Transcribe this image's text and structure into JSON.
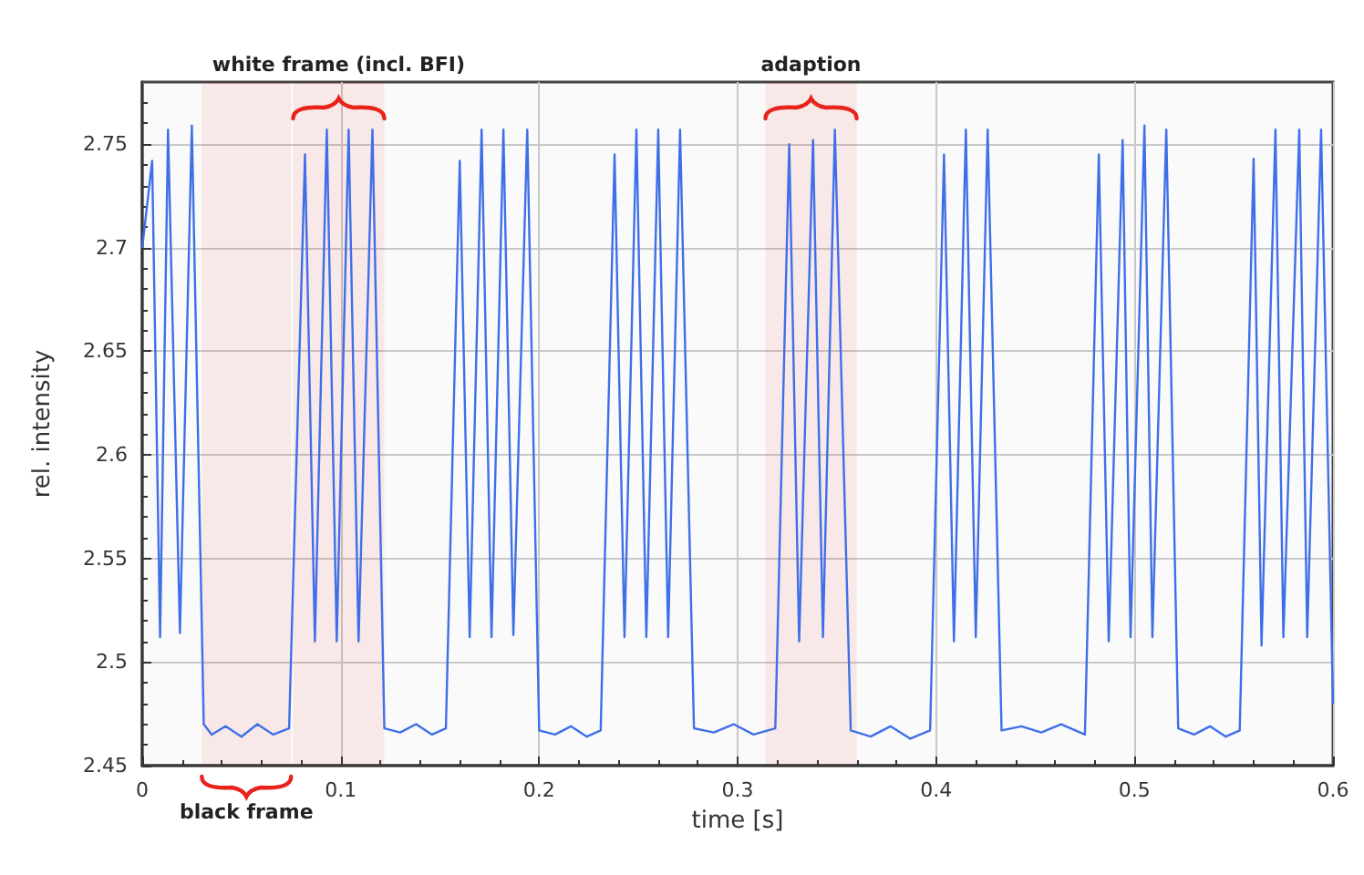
{
  "chart_data": {
    "type": "line",
    "xlabel": "time [s]",
    "ylabel": "rel. intensity",
    "bands": [
      {
        "axis": "x",
        "from": 0.076,
        "to": 0.122,
        "label": "white frame (incl. BFI)",
        "color": "#e8231c"
      },
      {
        "axis": "x",
        "from": 0.314,
        "to": 0.36,
        "label": "adaption",
        "color": "#e8231c"
      },
      {
        "axis": "x",
        "from": 0.03,
        "to": 0.075,
        "label": "black frame",
        "color": "#e8231c"
      }
    ],
    "series": [
      {
        "color": "#3f6fe8",
        "x": [
          0,
          0.005,
          0.009,
          0.013,
          0.019,
          0.025,
          0.031,
          0.035,
          0.042,
          0.05,
          0.058,
          0.066,
          0.074,
          0.082,
          0.087,
          0.093,
          0.098,
          0.104,
          0.109,
          0.116,
          0.122,
          0.13,
          0.138,
          0.146,
          0.153,
          0.16,
          0.165,
          0.171,
          0.176,
          0.182,
          0.187,
          0.194,
          0.2,
          0.208,
          0.216,
          0.224,
          0.231,
          0.238,
          0.243,
          0.249,
          0.254,
          0.26,
          0.265,
          0.271,
          0.278,
          0.288,
          0.298,
          0.308,
          0.319,
          0.326,
          0.331,
          0.338,
          0.343,
          0.349,
          0.357,
          0.367,
          0.377,
          0.387,
          0.397,
          0.404,
          0.409,
          0.415,
          0.42,
          0.426,
          0.433,
          0.443,
          0.453,
          0.463,
          0.475,
          0.482,
          0.487,
          0.494,
          0.498,
          0.505,
          0.509,
          0.516,
          0.522,
          0.53,
          0.538,
          0.546,
          0.553,
          0.56,
          0.564,
          0.571,
          0.575,
          0.583,
          0.587,
          0.594,
          0.6
        ],
        "values": [
          2.7,
          2.742,
          2.512,
          2.757,
          2.514,
          2.759,
          2.47,
          2.465,
          2.469,
          2.464,
          2.47,
          2.465,
          2.468,
          2.745,
          2.51,
          2.757,
          2.51,
          2.757,
          2.51,
          2.757,
          2.468,
          2.466,
          2.47,
          2.465,
          2.468,
          2.742,
          2.512,
          2.757,
          2.512,
          2.757,
          2.513,
          2.757,
          2.467,
          2.465,
          2.469,
          2.464,
          2.467,
          2.745,
          2.512,
          2.757,
          2.512,
          2.757,
          2.512,
          2.757,
          2.468,
          2.466,
          2.47,
          2.465,
          2.468,
          2.75,
          2.51,
          2.752,
          2.512,
          2.757,
          2.467,
          2.464,
          2.469,
          2.463,
          2.467,
          2.745,
          2.51,
          2.757,
          2.512,
          2.757,
          2.467,
          2.469,
          2.466,
          2.47,
          2.465,
          2.745,
          2.51,
          2.752,
          2.512,
          2.759,
          2.512,
          2.757,
          2.468,
          2.465,
          2.469,
          2.464,
          2.467,
          2.743,
          2.508,
          2.757,
          2.512,
          2.757,
          2.512,
          2.757,
          2.48
        ]
      }
    ],
    "xlim": [
      0,
      0.6
    ],
    "xticks": [
      0,
      0.1,
      0.2,
      0.3,
      0.4,
      0.5,
      0.6
    ],
    "ylim": [
      2.45,
      2.78
    ],
    "yticks": [
      2.45,
      2.5,
      2.55,
      2.6,
      2.65,
      2.7,
      2.75
    ],
    "grid": true,
    "marker": "none",
    "line_style": "solid"
  }
}
